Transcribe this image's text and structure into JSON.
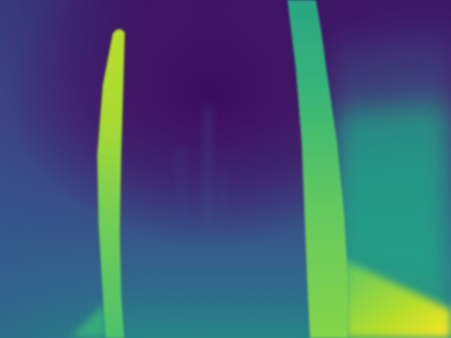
{
  "image": {
    "kind": "depth-map",
    "colormap": "viridis",
    "colors": {
      "far": "#440154",
      "mid_far": "#3b528b",
      "mid": "#21918c",
      "mid_near": "#5ec962",
      "near": "#fde725"
    }
  }
}
